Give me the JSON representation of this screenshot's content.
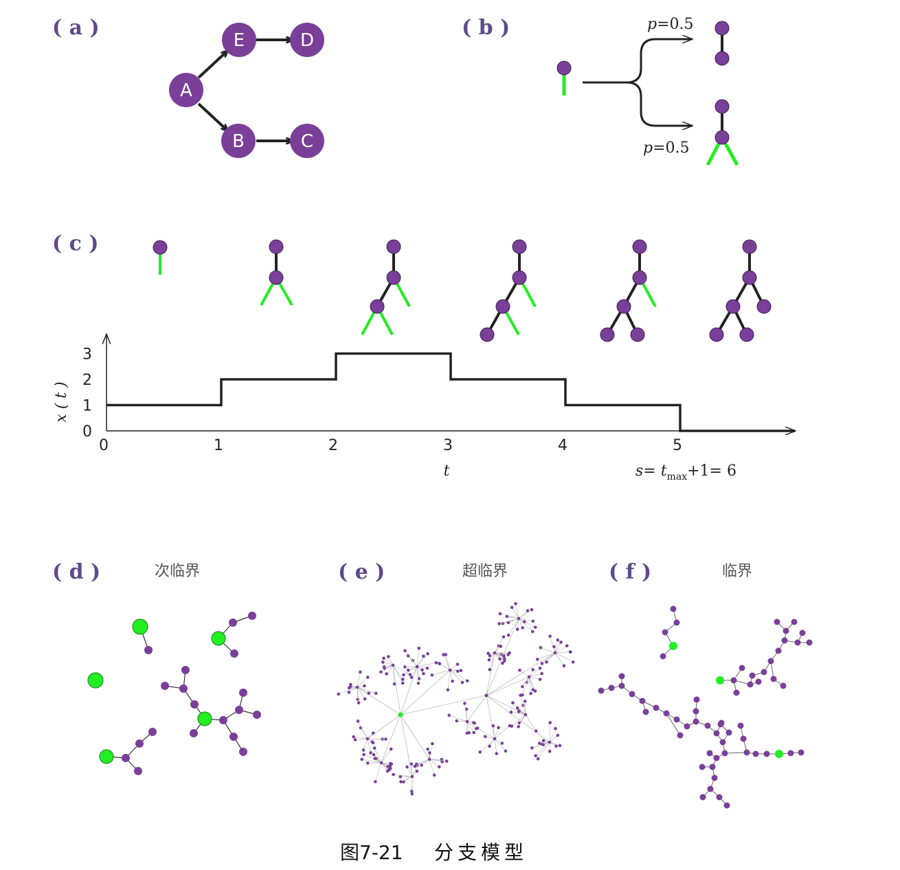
{
  "colors": {
    "node": "#7a3f99",
    "active": "#22ee22",
    "edge": "#222222",
    "label": "#5f4a8b",
    "thin_edge": "#aaaaaa"
  },
  "labels": {
    "a": "( a )",
    "b": "( b )",
    "c": "( c )",
    "d": "( d )",
    "e": "( e )",
    "f": "( f )"
  },
  "panel_a": {
    "nodes": [
      "A",
      "E",
      "D",
      "B",
      "C"
    ]
  },
  "panel_b": {
    "p_upper": "p=0.5",
    "p_lower": "p=0.5"
  },
  "panel_c": {
    "ylabel": "x ( t )",
    "xlabel": "t",
    "s_formula": {
      "s": "s",
      "eq": "= ",
      "t": "t",
      "sub": "max",
      "rest": "+1= 6"
    },
    "x_ticks": [
      "0",
      "1",
      "2",
      "3",
      "4",
      "5"
    ],
    "y_ticks": [
      "0",
      "1",
      "2",
      "3"
    ]
  },
  "chart_data": {
    "type": "line",
    "x": [
      0,
      1,
      2,
      3,
      4,
      5,
      6
    ],
    "series": [
      {
        "values": [
          1,
          2,
          3,
          2,
          1,
          0,
          0
        ]
      }
    ],
    "xlim": [
      0,
      6
    ],
    "ylim": [
      0,
      3.4
    ],
    "step": true
  },
  "panel_titles": {
    "d": "次临界",
    "e": "超临界",
    "f": "临界"
  },
  "caption": {
    "fig_no": "图7-21",
    "title": "分支模型"
  }
}
